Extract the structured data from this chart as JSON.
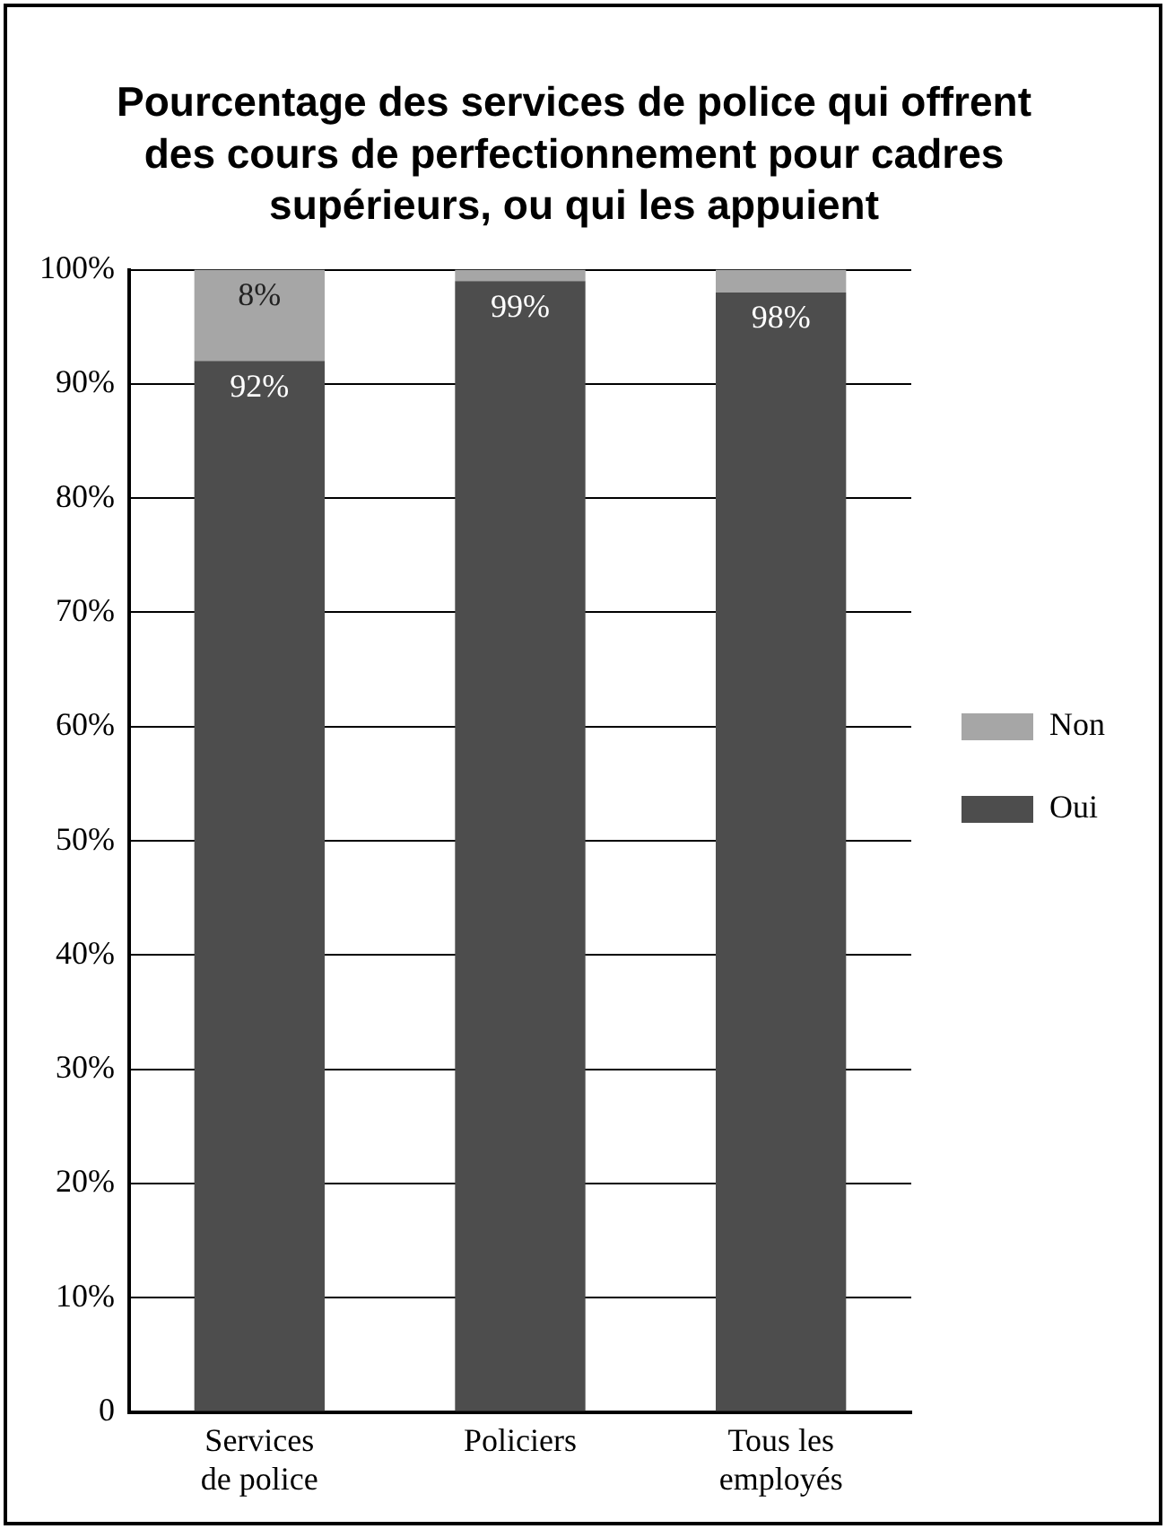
{
  "chart_data": {
    "type": "bar",
    "title": "Pourcentage des services de police qui offrent des cours de perfectionnement pour cadres supérieurs, ou qui les appuient",
    "categories": [
      "Services de police",
      "Policiers",
      "Tous les employés"
    ],
    "stacked": true,
    "series": [
      {
        "name": "Oui",
        "color": "#4d4d4d",
        "values": [
          92,
          99,
          98
        ],
        "value_labels": [
          "92%",
          "99%",
          "98%"
        ]
      },
      {
        "name": "Non",
        "color": "#a6a6a6",
        "values": [
          8,
          1,
          2
        ],
        "value_labels": [
          "8%",
          null,
          null
        ]
      }
    ],
    "ylim": [
      0,
      100
    ],
    "yticks": [
      0,
      {
        "value": 10,
        "label": "10%"
      },
      {
        "value": 20,
        "label": "20%"
      },
      {
        "value": 30,
        "label": "30%"
      },
      {
        "value": 40,
        "label": "40%"
      },
      {
        "value": 50,
        "label": "50%"
      },
      {
        "value": 60,
        "label": "60%"
      },
      {
        "value": 70,
        "label": "70%"
      },
      {
        "value": 80,
        "label": "80%"
      },
      {
        "value": 90,
        "label": "90%"
      },
      {
        "value": 100,
        "label": "100%"
      }
    ],
    "grid": "y",
    "legend": "right"
  }
}
